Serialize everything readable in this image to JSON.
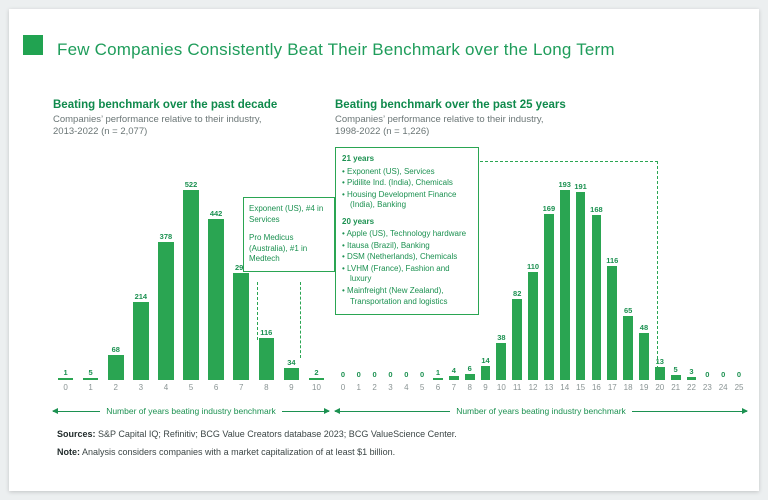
{
  "page": {
    "title": "Few Companies Consistently Beat Their Benchmark over the Long Term",
    "colors": {
      "accent_green": "#1c9151",
      "bar_green": "#2aa552",
      "title_green": "#1f9d5b",
      "logo_green": "#21a351",
      "tick_gray": "#8a9494"
    }
  },
  "chart_data": [
    {
      "type": "bar",
      "title": "Beating benchmark over the past decade",
      "subtitle_line1": "Companies’ performance relative to their industry,",
      "subtitle_line2": "2013-2022 (n = 2,077)",
      "categories": [
        0,
        1,
        2,
        3,
        4,
        5,
        6,
        7,
        8,
        9,
        10
      ],
      "values": [
        1,
        5,
        68,
        214,
        378,
        522,
        442,
        295,
        116,
        34,
        2
      ],
      "xlabel": "Number of years beating industry benchmark",
      "ylim": [
        0,
        560
      ],
      "grid": false,
      "annotation_entries": [
        "Exponent (US), #4 in Services",
        "Pro Medicus (Australia), #1 in Medtech"
      ]
    },
    {
      "type": "bar",
      "title": "Beating benchmark over the past 25 years",
      "subtitle_line1": "Companies’ performance relative to their industry,",
      "subtitle_line2": "1998-2022 (n = 1,226)",
      "categories": [
        0,
        1,
        2,
        3,
        4,
        5,
        6,
        7,
        8,
        9,
        10,
        11,
        12,
        13,
        14,
        15,
        16,
        17,
        18,
        19,
        20,
        21,
        22,
        23,
        24,
        25
      ],
      "values": [
        0,
        0,
        0,
        0,
        0,
        0,
        1,
        4,
        6,
        14,
        38,
        82,
        110,
        169,
        193,
        191,
        168,
        116,
        65,
        48,
        13,
        5,
        3,
        0,
        0,
        0
      ],
      "xlabel": "Number of years beating industry benchmark",
      "ylim": [
        0,
        200
      ],
      "grid": false,
      "annotation_groups": [
        {
          "heading": "21 years",
          "items": [
            "Exponent (US), Services",
            "Pidilite Ind. (India), Chemicals",
            "Housing Development Finance (India), Banking"
          ]
        },
        {
          "heading": "20 years",
          "items": [
            "Apple (US), Technology hardware",
            "Itausa (Brazil), Banking",
            "DSM (Netherlands), Chemicals",
            "LVHM (France), Fashion and luxury",
            "Mainfreight (New Zealand), Transportation and logistics"
          ]
        }
      ]
    }
  ],
  "footer": {
    "sources_label": "Sources:",
    "sources_text": " S&P Capital IQ; Refinitiv; BCG Value Creators database 2023; BCG ValueScience Center.",
    "note_label": "Note:",
    "note_text": " Analysis considers companies with a market capitalization of at least $1 billion."
  }
}
